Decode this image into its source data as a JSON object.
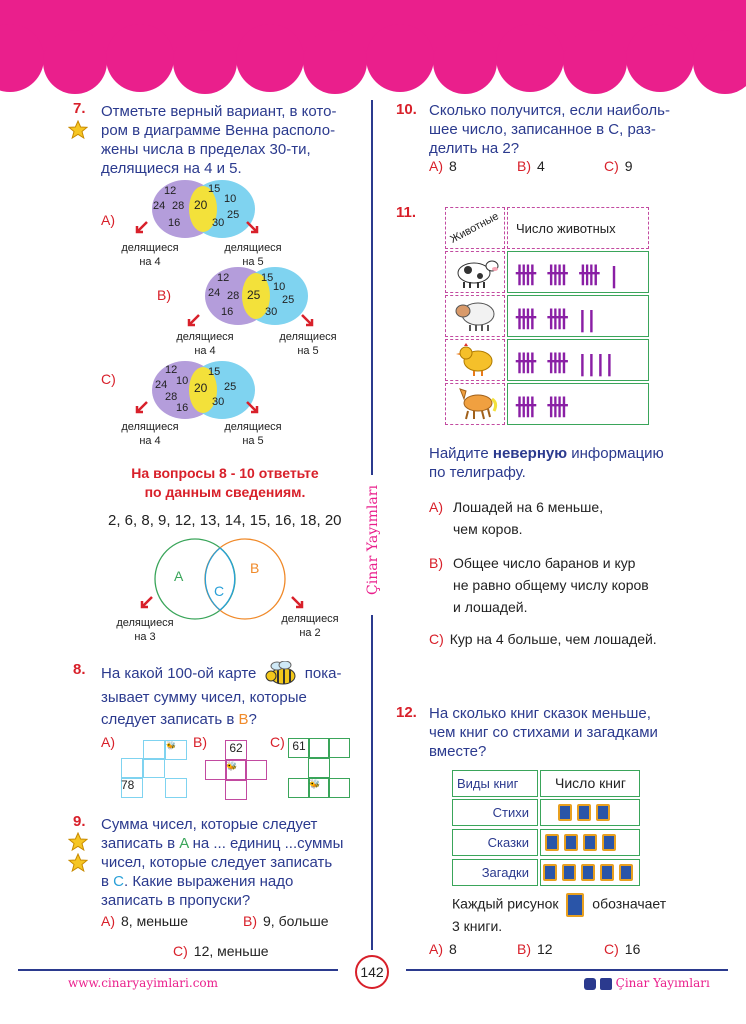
{
  "q7": {
    "num": "7.",
    "text": [
      "Отметьте верный вариант, в кото-",
      "ром в диаграмме Венна располо-",
      "жены числа в пределах 30-ти,",
      "делящиеся на 4 и 5."
    ],
    "options": [
      {
        "label": "A)",
        "left": [
          "12",
          "24",
          "28",
          "16"
        ],
        "middle": "20",
        "right": [
          "15",
          "10",
          "25",
          "30"
        ],
        "left_caption": [
          "делящиеся",
          "на 4"
        ],
        "right_caption": [
          "делящиеся",
          "на 5"
        ]
      },
      {
        "label": "B)",
        "left": [
          "12",
          "24",
          "28",
          "16"
        ],
        "middle": "25",
        "right": [
          "15",
          "10",
          "25",
          "30"
        ],
        "left_caption": [
          "делящиеся",
          "на 4"
        ],
        "right_caption": [
          "делящиеся",
          "на 5"
        ]
      },
      {
        "label": "C)",
        "left": [
          "12",
          "24",
          "10",
          "28",
          "16"
        ],
        "middle": "20",
        "right": [
          "15",
          "25",
          "30"
        ],
        "left_caption": [
          "делящиеся",
          "на 4"
        ],
        "right_caption": [
          "делящиеся",
          "на 5"
        ]
      }
    ]
  },
  "info": {
    "heading": [
      "На вопросы 8 - 10 ответьте",
      "по данным сведениям."
    ],
    "numbers": "2, 6, 8, 9, 12, 13, 14, 15, 16, 18, 20",
    "venn": {
      "a": "A",
      "b": "B",
      "c": "C",
      "left_caption": [
        "делящиеся",
        "на 3"
      ],
      "right_caption": [
        "делящиеся",
        "на 2"
      ]
    }
  },
  "q8": {
    "num": "8.",
    "text1": "На какой 100-ой карте",
    "text1b": "пока-",
    "text2": "зывает сумму чисел, которые",
    "text3a": "следует записать в ",
    "text3b": "B",
    "text3c": "?",
    "opt_a": "A)",
    "opt_b": "B)",
    "opt_c": "C)",
    "a_num": "78",
    "b_num": "62",
    "c_num": "61"
  },
  "q9": {
    "num": "9.",
    "line1": "Сумма чисел, которые следует",
    "line2a": "записать в ",
    "line2b": "A",
    "line2c": " на ... единиц  ...суммы",
    "line3": "чисел, которые следует записать",
    "line4a": "в ",
    "line4b": "C",
    "line4c": ". Какие выражения надо",
    "line5": "записать в пропуски?",
    "options": [
      {
        "l": "A)",
        "t": "8, меньше"
      },
      {
        "l": "B)",
        "t": "9, больше"
      },
      {
        "l": "C)",
        "t": "12, меньше"
      }
    ]
  },
  "q10": {
    "num": "10.",
    "text": [
      "Сколько получится, если наиболь-",
      "шее число, записанное в С, раз-",
      "делить на 2?"
    ],
    "options": [
      {
        "l": "A)",
        "t": "8"
      },
      {
        "l": "B)",
        "t": "4"
      },
      {
        "l": "C)",
        "t": "9"
      }
    ]
  },
  "q11": {
    "num": "11.",
    "col1": "Животные",
    "col2": "Число животных",
    "rows": [
      {
        "animal": "cow",
        "tally": "卌 卌 卌 |"
      },
      {
        "animal": "sheep",
        "tally": "卌 卌 ||"
      },
      {
        "animal": "chicken",
        "tally": "卌 卌 ||||"
      },
      {
        "animal": "horse",
        "tally": "卌 卌"
      }
    ],
    "question_a": "Найдите ",
    "question_b": "неверную",
    "question_c": " информацию",
    "question2": "по телиграфу.",
    "options": [
      {
        "l": "A)",
        "t": [
          "Лошадей на 6 меньше,",
          "чем коров."
        ]
      },
      {
        "l": "B)",
        "t": [
          "Общее число баранов и кур",
          "не равно общему числу коров",
          "и лошадей."
        ]
      },
      {
        "l": "C)",
        "t": [
          "Кур на 4 больше, чем лошадей."
        ]
      }
    ]
  },
  "q12": {
    "num": "12.",
    "text": [
      "На сколько книг сказок меньше,",
      "чем книг со стихами и загадками",
      "вместе?"
    ],
    "col1": "Виды книг",
    "col2": "Число книг",
    "rows": [
      {
        "name": "Стихи",
        "books": 3
      },
      {
        "name": "Сказки",
        "books": 4
      },
      {
        "name": "Загадки",
        "books": 5
      }
    ],
    "legend_a": "Каждый рисунок",
    "legend_b": "обозначает",
    "legend_c": "3 книги.",
    "options": [
      {
        "l": "A)",
        "t": "8"
      },
      {
        "l": "B)",
        "t": "12"
      },
      {
        "l": "C)",
        "t": "16"
      }
    ]
  },
  "footer": {
    "website": "www.cinaryayimlari.com",
    "page": "142",
    "brand": "Çinar Yayımları",
    "side_brand": "Çinar Yayımları"
  },
  "colors": {
    "pink": "#ea1f8c",
    "navy": "#2b3a8e",
    "red": "#d8202a",
    "purple": "#b49ddb",
    "cyan": "#7fd3f0",
    "yellow": "#f3e13a"
  }
}
